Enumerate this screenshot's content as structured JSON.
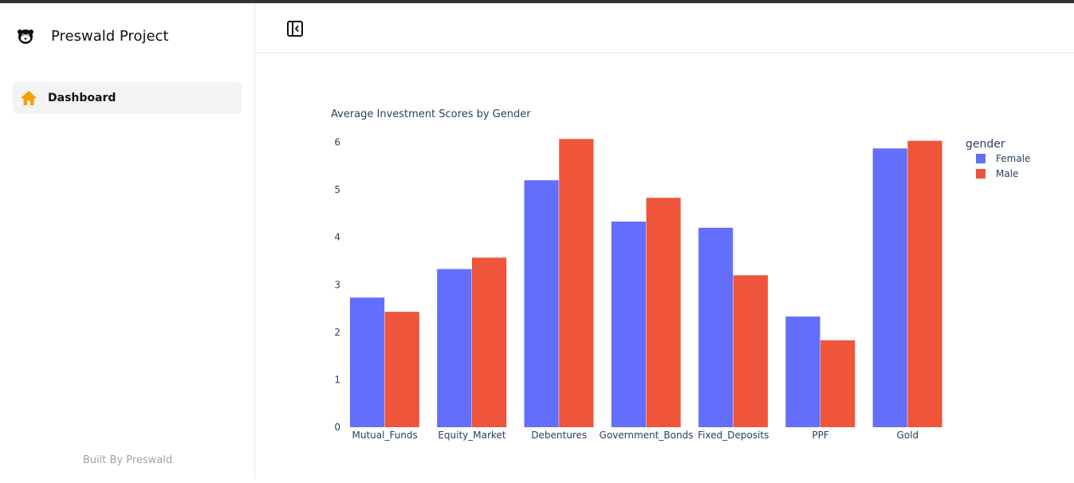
{
  "app": {
    "name": "Preswald Project",
    "footer": "Built By Preswald"
  },
  "sidebar": {
    "items": [
      {
        "label": "Dashboard",
        "icon": "home-icon",
        "active": true
      }
    ]
  },
  "header": {
    "toggle_icon": "sidebar-collapse-icon"
  },
  "colors": {
    "female": "#636efa",
    "male": "#ef553b",
    "axis_text": "#2a3f5f",
    "home_icon": "#f59e0b"
  },
  "chart_data": {
    "type": "bar",
    "title": "Average Investment Scores by Gender",
    "xlabel": "",
    "ylabel": "",
    "categories": [
      "Mutual_Funds",
      "Equity_Market",
      "Debentures",
      "Government_Bonds",
      "Fixed_Deposits",
      "PPF",
      "Gold"
    ],
    "series": [
      {
        "name": "Female",
        "values": [
          2.73,
          3.33,
          5.2,
          4.33,
          4.2,
          2.33,
          5.87
        ]
      },
      {
        "name": "Male",
        "values": [
          2.43,
          3.57,
          6.07,
          4.83,
          3.2,
          1.83,
          6.03
        ]
      }
    ],
    "ylim": [
      0,
      6.25
    ],
    "yticks": [
      0,
      1,
      2,
      3,
      4,
      5,
      6
    ],
    "legend_title": "gender",
    "legend_position": "top-right",
    "grid": false
  }
}
